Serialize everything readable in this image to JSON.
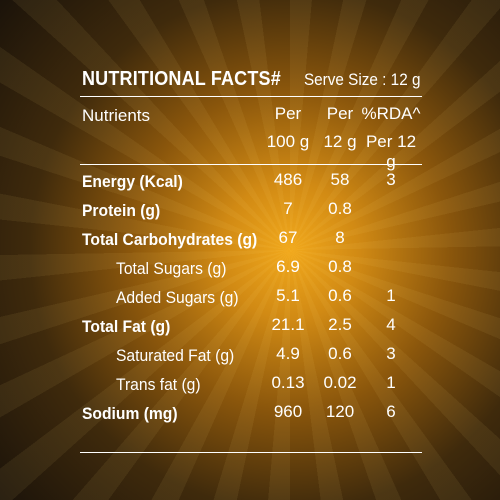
{
  "header": {
    "title": "NUTRITIONAL FACTS#",
    "serve_size": "Serve Size : 12 g",
    "col_nutrients": "Nutrients",
    "col1_line1": "Per",
    "col1_line2": "100 g",
    "col2_line1": "Per",
    "col2_line2": "12 g",
    "col3_line1": "%RDA^",
    "col3_line2": "Per 12 g"
  },
  "rows": [
    {
      "name": "Energy (Kcal)",
      "per100": "486",
      "per12": "58",
      "rda": "3"
    },
    {
      "name": "Protein (g)",
      "per100": "7",
      "per12": "0.8",
      "rda": ""
    },
    {
      "name": "Total Carbohydrates (g)",
      "per100": "67",
      "per12": "8",
      "rda": ""
    },
    {
      "name": "Total Sugars (g)",
      "per100": "6.9",
      "per12": "0.8",
      "rda": ""
    },
    {
      "name": "Added Sugars (g)",
      "per100": "5.1",
      "per12": "0.6",
      "rda": "1"
    },
    {
      "name": "Total Fat (g)",
      "per100": "21.1",
      "per12": "2.5",
      "rda": "4"
    },
    {
      "name": "Saturated Fat (g)",
      "per100": "4.9",
      "per12": "0.6",
      "rda": "3"
    },
    {
      "name": "Trans fat (g)",
      "per100": "0.13",
      "per12": "0.02",
      "rda": "1"
    },
    {
      "name": "Sodium (mg)",
      "per100": "960",
      "per12": "120",
      "rda": "6"
    }
  ],
  "colors": {
    "text": "#ffffff",
    "background_center": "#f2a91c",
    "background_edge": "#1b130a"
  }
}
